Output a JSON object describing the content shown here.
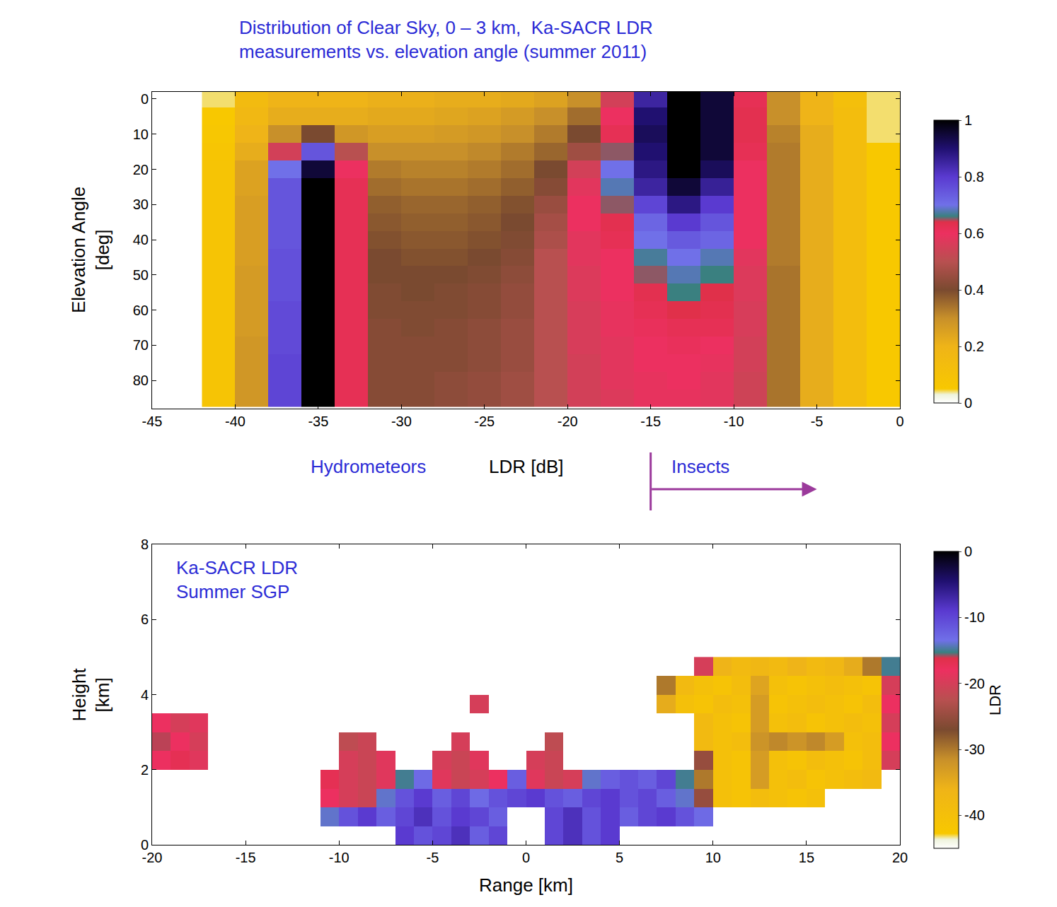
{
  "chart_data": [
    {
      "type": "heatmap",
      "title": [
        "Distribution of Clear Sky, 0 – 3 km,  Ka-SACR LDR",
        "measurements vs. elevation angle (summer 2011)"
      ],
      "x_label": "LDR [dB]",
      "y_label": [
        "Elevation Angle",
        "[deg]"
      ],
      "x": [
        -41,
        -39,
        -37,
        -35,
        -33,
        -31,
        -29,
        -27,
        -25,
        -23,
        -21,
        -19,
        -17,
        -15,
        -13,
        -11,
        -9,
        -7,
        -5,
        -3,
        -1
      ],
      "y": [
        0,
        5,
        10,
        15,
        20,
        25,
        30,
        35,
        40,
        45,
        50,
        55,
        60,
        65,
        70,
        75,
        80,
        85
      ],
      "z": [
        [
          0.04,
          0.15,
          0.2,
          0.2,
          0.2,
          0.21,
          0.21,
          0.22,
          0.22,
          0.23,
          0.25,
          0.3,
          0.55,
          0.85,
          1,
          0.95,
          0.62,
          0.3,
          0.2,
          0.12,
          0.04
        ],
        [
          0.05,
          0.17,
          0.22,
          0.22,
          0.22,
          0.23,
          0.23,
          0.24,
          0.25,
          0.27,
          0.3,
          0.35,
          0.6,
          0.9,
          1,
          0.95,
          0.63,
          0.3,
          0.2,
          0.13,
          0.04
        ],
        [
          0.06,
          0.2,
          0.3,
          0.4,
          0.28,
          0.26,
          0.26,
          0.27,
          0.28,
          0.3,
          0.33,
          0.4,
          0.62,
          0.92,
          1,
          0.95,
          0.63,
          0.32,
          0.22,
          0.13,
          0.04
        ],
        [
          0.07,
          0.22,
          0.55,
          0.75,
          0.5,
          0.3,
          0.3,
          0.3,
          0.31,
          0.33,
          0.36,
          0.46,
          0.65,
          0.9,
          1,
          0.95,
          0.62,
          0.33,
          0.22,
          0.13,
          0.05
        ],
        [
          0.08,
          0.25,
          0.7,
          0.95,
          0.6,
          0.33,
          0.32,
          0.32,
          0.33,
          0.35,
          0.4,
          0.55,
          0.7,
          0.88,
          1,
          0.92,
          0.6,
          0.33,
          0.22,
          0.13,
          0.05
        ],
        [
          0.08,
          0.25,
          0.75,
          1,
          0.62,
          0.35,
          0.34,
          0.34,
          0.35,
          0.37,
          0.42,
          0.58,
          0.68,
          0.85,
          0.95,
          0.86,
          0.6,
          0.33,
          0.22,
          0.13,
          0.05
        ],
        [
          0.08,
          0.26,
          0.75,
          1,
          0.62,
          0.37,
          0.36,
          0.36,
          0.37,
          0.39,
          0.45,
          0.6,
          0.65,
          0.78,
          0.88,
          0.8,
          0.6,
          0.33,
          0.22,
          0.13,
          0.05
        ],
        [
          0.08,
          0.26,
          0.75,
          1,
          0.62,
          0.38,
          0.37,
          0.37,
          0.38,
          0.4,
          0.47,
          0.6,
          0.63,
          0.72,
          0.8,
          0.75,
          0.6,
          0.33,
          0.22,
          0.13,
          0.05
        ],
        [
          0.08,
          0.26,
          0.75,
          1,
          0.62,
          0.39,
          0.38,
          0.38,
          0.39,
          0.41,
          0.48,
          0.58,
          0.62,
          0.7,
          0.74,
          0.72,
          0.6,
          0.33,
          0.22,
          0.13,
          0.05
        ],
        [
          0.08,
          0.26,
          0.76,
          1,
          0.62,
          0.4,
          0.39,
          0.39,
          0.4,
          0.42,
          0.5,
          0.58,
          0.6,
          0.67,
          0.7,
          0.68,
          0.58,
          0.33,
          0.22,
          0.13,
          0.05
        ],
        [
          0.08,
          0.27,
          0.76,
          1,
          0.62,
          0.4,
          0.4,
          0.4,
          0.41,
          0.43,
          0.5,
          0.57,
          0.6,
          0.65,
          0.68,
          0.66,
          0.57,
          0.34,
          0.22,
          0.13,
          0.05
        ],
        [
          0.08,
          0.27,
          0.76,
          1,
          0.62,
          0.41,
          0.4,
          0.41,
          0.42,
          0.44,
          0.5,
          0.57,
          0.6,
          0.63,
          0.66,
          0.64,
          0.57,
          0.34,
          0.22,
          0.13,
          0.05
        ],
        [
          0.08,
          0.27,
          0.77,
          1,
          0.62,
          0.41,
          0.41,
          0.41,
          0.42,
          0.44,
          0.5,
          0.56,
          0.59,
          0.62,
          0.64,
          0.63,
          0.56,
          0.34,
          0.22,
          0.13,
          0.05
        ],
        [
          0.08,
          0.27,
          0.77,
          1,
          0.62,
          0.42,
          0.41,
          0.42,
          0.43,
          0.45,
          0.5,
          0.56,
          0.59,
          0.61,
          0.62,
          0.62,
          0.56,
          0.34,
          0.22,
          0.13,
          0.05
        ],
        [
          0.08,
          0.28,
          0.77,
          1,
          0.62,
          0.42,
          0.42,
          0.42,
          0.43,
          0.45,
          0.5,
          0.56,
          0.58,
          0.6,
          0.61,
          0.6,
          0.55,
          0.34,
          0.22,
          0.13,
          0.05
        ],
        [
          0.08,
          0.28,
          0.78,
          1,
          0.62,
          0.42,
          0.42,
          0.42,
          0.43,
          0.45,
          0.5,
          0.55,
          0.58,
          0.6,
          0.6,
          0.59,
          0.55,
          0.34,
          0.22,
          0.13,
          0.05
        ],
        [
          0.08,
          0.28,
          0.78,
          1,
          0.62,
          0.42,
          0.42,
          0.43,
          0.44,
          0.46,
          0.5,
          0.55,
          0.58,
          0.59,
          0.6,
          0.58,
          0.54,
          0.34,
          0.22,
          0.13,
          0.05
        ],
        [
          0.08,
          0.28,
          0.78,
          1,
          0.62,
          0.42,
          0.42,
          0.43,
          0.44,
          0.46,
          0.5,
          0.55,
          0.57,
          0.59,
          0.59,
          0.58,
          0.54,
          0.34,
          0.22,
          0.13,
          0.05
        ]
      ],
      "xlim": [
        -45,
        0
      ],
      "xticks": [
        -45,
        -40,
        -35,
        -30,
        -25,
        -20,
        -15,
        -10,
        -5,
        0
      ],
      "ylim": [
        88,
        -2
      ],
      "yticks": [
        0,
        10,
        20,
        30,
        40,
        50,
        60,
        70,
        80
      ],
      "zlim": [
        0,
        1
      ],
      "zticks": [
        0,
        0.2,
        0.4,
        0.6,
        0.8,
        1
      ],
      "annotations": [
        {
          "text": "Hydrometeors",
          "x": -32
        },
        {
          "text": "Insects",
          "x": -12,
          "arrow": [
            -15,
            -5
          ]
        }
      ]
    },
    {
      "type": "heatmap",
      "x_label": "Range [km]",
      "y_label": [
        "Height",
        "[km]"
      ],
      "z_label": "LDR",
      "x": [
        -19.5,
        -18.5,
        -17.5,
        -16.5,
        -15.5,
        -14.5,
        -13.5,
        -12.5,
        -11.5,
        -10.5,
        -9.5,
        -8.5,
        -7.5,
        -6.5,
        -5.5,
        -4.5,
        -3.5,
        -2.5,
        -1.5,
        -0.5,
        0.5,
        1.5,
        2.5,
        3.5,
        4.5,
        5.5,
        6.5,
        7.5,
        8.5,
        9.5,
        10.5,
        11.5,
        12.5,
        13.5,
        14.5,
        15.5,
        16.5,
        17.5,
        18.5,
        19.5
      ],
      "y": [
        0.25,
        0.75,
        1.25,
        1.75,
        2.25,
        2.75,
        3.25,
        3.75,
        4.25,
        4.75
      ],
      "z": [
        [
          null,
          null,
          null,
          null,
          null,
          null,
          null,
          null,
          null,
          null,
          null,
          null,
          null,
          -9,
          -11,
          -10,
          -8,
          -12,
          -10,
          null,
          null,
          -10,
          -8,
          -11,
          -9,
          null,
          null,
          null,
          null,
          null,
          null,
          null,
          null,
          null,
          null,
          null,
          null,
          null,
          null,
          null
        ],
        [
          null,
          null,
          null,
          null,
          null,
          null,
          null,
          null,
          null,
          -14,
          -11,
          -9,
          -12,
          -10,
          -8,
          -11,
          -9,
          -10,
          -12,
          null,
          null,
          -10,
          -8,
          -11,
          -9,
          -12,
          -10,
          -9,
          -11,
          -13,
          null,
          null,
          null,
          null,
          null,
          null,
          null,
          null,
          null,
          null
        ],
        [
          null,
          null,
          null,
          null,
          null,
          null,
          null,
          null,
          null,
          -18,
          -20,
          -21,
          -14,
          -11,
          -9,
          -12,
          -10,
          -13,
          -11,
          -10,
          -9,
          -11,
          -12,
          -10,
          -9,
          -11,
          -10,
          -12,
          -14,
          -25,
          -40,
          -41,
          -39,
          -40,
          -41,
          -40,
          null,
          null,
          null,
          null
        ],
        [
          null,
          null,
          null,
          null,
          null,
          null,
          null,
          null,
          null,
          -17,
          -20,
          -21,
          -19,
          -15,
          -13,
          -19,
          -21,
          -20,
          -18,
          -12,
          -19,
          -21,
          -20,
          -14,
          -12,
          -11,
          -12,
          -10,
          -15,
          -30,
          -40,
          -41,
          -33,
          -40,
          -39,
          -41,
          -40,
          -39,
          -38,
          null
        ],
        [
          -18,
          -17,
          -19,
          null,
          null,
          null,
          null,
          null,
          null,
          null,
          -20,
          -21,
          -19,
          null,
          null,
          -20,
          -21,
          -19,
          null,
          null,
          -20,
          -21,
          null,
          null,
          null,
          null,
          null,
          null,
          null,
          -25,
          -40,
          -41,
          -33,
          -40,
          -41,
          -39,
          -40,
          -41,
          -39,
          -20
        ],
        [
          -16,
          -18,
          -20,
          null,
          null,
          null,
          null,
          null,
          null,
          null,
          -22,
          -21,
          null,
          null,
          null,
          null,
          -20,
          null,
          null,
          null,
          null,
          -22,
          null,
          null,
          null,
          null,
          null,
          null,
          null,
          -38,
          -40,
          -39,
          -32,
          -31,
          -32,
          -31,
          -33,
          -40,
          -39,
          -18
        ],
        [
          -18,
          -20,
          -19,
          null,
          null,
          null,
          null,
          null,
          null,
          null,
          null,
          null,
          null,
          null,
          null,
          null,
          null,
          null,
          null,
          null,
          null,
          null,
          null,
          null,
          null,
          null,
          null,
          null,
          null,
          -38,
          -40,
          -41,
          -33,
          -40,
          -39,
          -41,
          -40,
          -39,
          -40,
          -20
        ],
        [
          null,
          null,
          null,
          null,
          null,
          null,
          null,
          null,
          null,
          null,
          null,
          null,
          null,
          null,
          null,
          null,
          null,
          -20,
          null,
          null,
          null,
          null,
          null,
          null,
          null,
          null,
          null,
          -35,
          -40,
          -41,
          -39,
          -40,
          -33,
          -41,
          -40,
          -39,
          -40,
          -41,
          -39,
          -18
        ],
        [
          null,
          null,
          null,
          null,
          null,
          null,
          null,
          null,
          null,
          null,
          null,
          null,
          null,
          null,
          null,
          null,
          null,
          null,
          null,
          null,
          null,
          null,
          null,
          null,
          null,
          null,
          null,
          -30,
          -38,
          -40,
          -41,
          -39,
          -34,
          -40,
          -41,
          -40,
          -39,
          -40,
          -41,
          -20
        ],
        [
          null,
          null,
          null,
          null,
          null,
          null,
          null,
          null,
          null,
          null,
          null,
          null,
          null,
          null,
          null,
          null,
          null,
          null,
          null,
          null,
          null,
          null,
          null,
          null,
          null,
          null,
          null,
          null,
          null,
          -20,
          -36,
          -38,
          -37,
          -38,
          -36,
          -38,
          -37,
          -35,
          -30,
          -15
        ]
      ],
      "xlim": [
        -20,
        20
      ],
      "xticks": [
        -20,
        -15,
        -10,
        -5,
        0,
        5,
        10,
        15,
        20
      ],
      "ylim": [
        0,
        8
      ],
      "yticks": [
        0,
        2,
        4,
        6,
        8
      ],
      "zlim": [
        -45,
        0
      ],
      "zticks": [
        0,
        -10,
        -20,
        -30,
        -40
      ],
      "annotations": [
        {
          "text": [
            "Ka-SACR LDR",
            "Summer SGP"
          ],
          "x": -18.8,
          "y": 7.7
        }
      ]
    }
  ]
}
